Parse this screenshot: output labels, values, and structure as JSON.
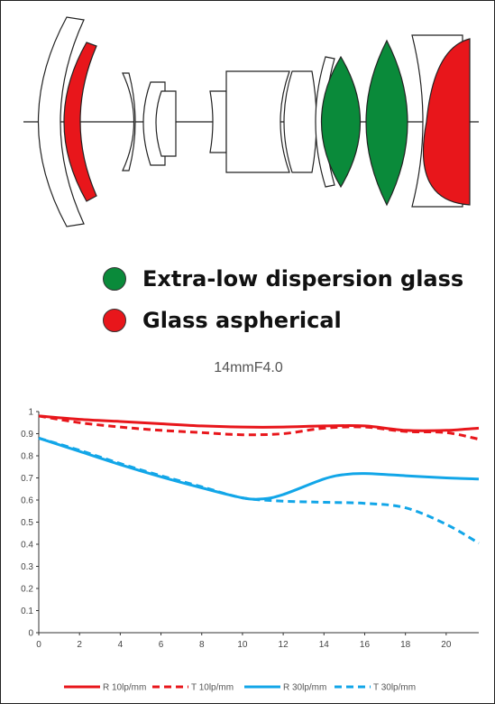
{
  "legend": {
    "ed_glass": {
      "label": "Extra-low dispersion glass",
      "color": "#0a8a3a"
    },
    "aspherical": {
      "label": "Glass aspherical",
      "color": "#e8161b"
    }
  },
  "chart_data": {
    "type": "line",
    "title": "14mmF4.0",
    "xlabel": "",
    "ylabel": "",
    "xlim": [
      0,
      21.6
    ],
    "ylim": [
      0,
      1
    ],
    "grid": false,
    "legend_position": "bottom",
    "x_ticks": [
      0,
      2,
      4,
      6,
      8,
      10,
      12,
      14,
      16,
      18,
      20
    ],
    "y_ticks": [
      0,
      0.1,
      0.2,
      0.3,
      0.4,
      0.5,
      0.6,
      0.7,
      0.8,
      0.9,
      1
    ],
    "y_tick_labels": [
      "0",
      "0.1",
      "0.2",
      "0.3",
      "0.4",
      "0.5",
      "0.6",
      "0.7",
      "0.8",
      "0.9",
      "1"
    ],
    "series": [
      {
        "name": "R 10lp/mm",
        "color": "#e8161b",
        "dash": false,
        "points": [
          [
            0,
            0.98
          ],
          [
            2,
            0.965
          ],
          [
            4,
            0.955
          ],
          [
            6,
            0.945
          ],
          [
            8,
            0.935
          ],
          [
            10,
            0.93
          ],
          [
            12,
            0.93
          ],
          [
            14,
            0.935
          ],
          [
            16,
            0.935
          ],
          [
            18,
            0.915
          ],
          [
            20,
            0.915
          ],
          [
            21.6,
            0.925
          ]
        ]
      },
      {
        "name": "T 10lp/mm",
        "color": "#e8161b",
        "dash": true,
        "points": [
          [
            0,
            0.98
          ],
          [
            2,
            0.95
          ],
          [
            4,
            0.93
          ],
          [
            6,
            0.915
          ],
          [
            8,
            0.905
          ],
          [
            10,
            0.895
          ],
          [
            12,
            0.9
          ],
          [
            14,
            0.925
          ],
          [
            16,
            0.93
          ],
          [
            18,
            0.91
          ],
          [
            20,
            0.905
          ],
          [
            21.6,
            0.875
          ]
        ]
      },
      {
        "name": "R 30lp/mm",
        "color": "#12a6e8",
        "dash": false,
        "points": [
          [
            0,
            0.88
          ],
          [
            2,
            0.82
          ],
          [
            4,
            0.76
          ],
          [
            6,
            0.705
          ],
          [
            8,
            0.655
          ],
          [
            10,
            0.61
          ],
          [
            11,
            0.605
          ],
          [
            12,
            0.625
          ],
          [
            14,
            0.695
          ],
          [
            15,
            0.715
          ],
          [
            16,
            0.72
          ],
          [
            18,
            0.71
          ],
          [
            20,
            0.7
          ],
          [
            21.6,
            0.695
          ]
        ]
      },
      {
        "name": "T 30lp/mm",
        "color": "#12a6e8",
        "dash": true,
        "points": [
          [
            0,
            0.88
          ],
          [
            2,
            0.825
          ],
          [
            4,
            0.765
          ],
          [
            6,
            0.71
          ],
          [
            8,
            0.66
          ],
          [
            10,
            0.61
          ],
          [
            12,
            0.595
          ],
          [
            14,
            0.59
          ],
          [
            16,
            0.585
          ],
          [
            18,
            0.565
          ],
          [
            20,
            0.49
          ],
          [
            21.6,
            0.405
          ]
        ]
      }
    ]
  }
}
